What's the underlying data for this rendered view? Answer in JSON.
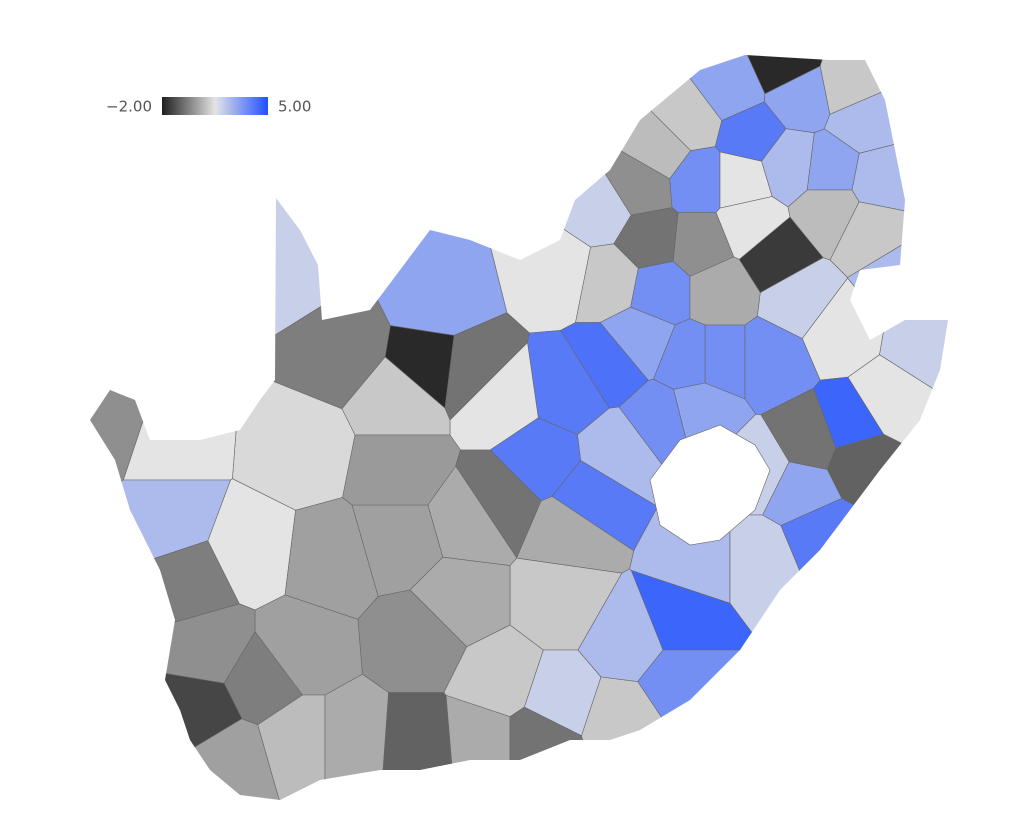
{
  "chart_data": {
    "type": "choropleth",
    "zlim": [
      -2,
      5
    ],
    "zticks": [
      {
        "value": -2,
        "label": "−2.00"
      },
      {
        "value": 5,
        "label": "5.00"
      }
    ],
    "colorscale": [
      "#1e1e1e",
      "#e4e4e4",
      "#2050ff"
    ],
    "values": [
      -1.8,
      3,
      3,
      1,
      2.5,
      4,
      1,
      0.8,
      0,
      3.5,
      1.5,
      2.5,
      3,
      2.5,
      1,
      0.8,
      -1.5,
      1.5,
      0,
      -0.5,
      2,
      1.5,
      1,
      3.5,
      0.5,
      2,
      1.5,
      2.5,
      2,
      1.5,
      4.5,
      -0.5,
      -0.8,
      3,
      4,
      2,
      3.5,
      3.5,
      3.5,
      3,
      4.2,
      4,
      4,
      4,
      2.5,
      3.5,
      3,
      2.5,
      2,
      4.5,
      2.5,
      3.5,
      1,
      1,
      2,
      1,
      0.5,
      1.5,
      3,
      -0.5,
      -1.8,
      -0.3,
      2,
      1,
      1.3,
      1.5,
      0,
      2.5,
      -0.3,
      1.5,
      0.3,
      0.3,
      0.2,
      0.5,
      0,
      0.3,
      -0.3,
      -1.3,
      0,
      0.3,
      0.8,
      0.5,
      -0.8,
      0.5,
      -0.5,
      0.5,
      -0.5
    ]
  }
}
